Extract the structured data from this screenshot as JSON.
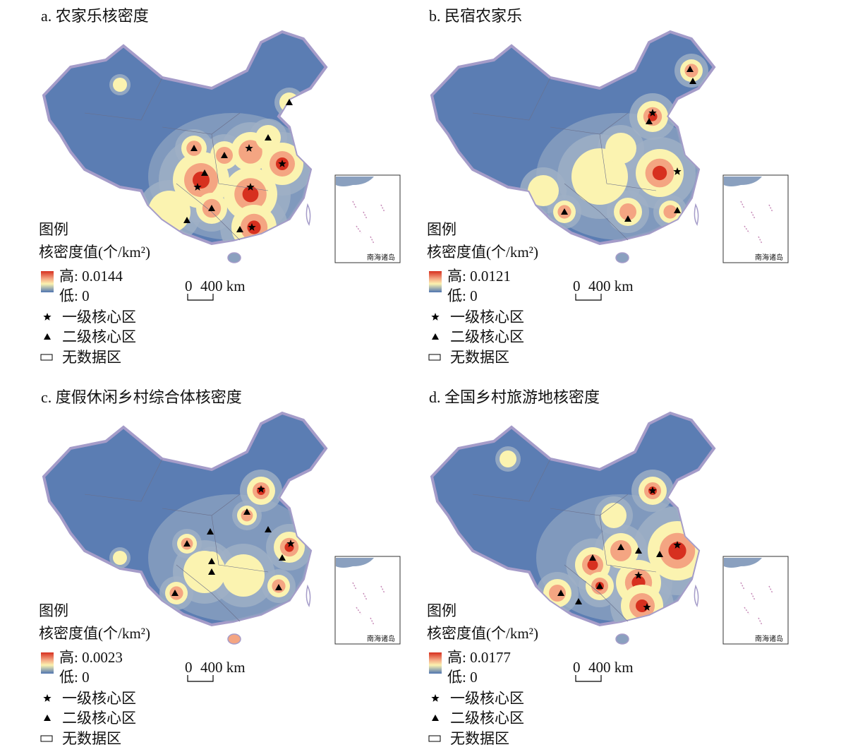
{
  "panels": [
    {
      "title": "a. 农家乐核密度",
      "legend_title": "图例",
      "legend_subtitle": "核密度值(个/km²)",
      "high": "高: 0.0144",
      "low": "低: 0",
      "core1": "一级核心区",
      "core2": "二级核心区",
      "nodata": "无数据区",
      "scale_zero": "0",
      "scale_label": "400 km",
      "inset_label": "南海诸岛"
    },
    {
      "title": "b. 民宿农家乐",
      "legend_title": "图例",
      "legend_subtitle": "核密度值(个/km²)",
      "high": "高: 0.0121",
      "low": "低: 0",
      "core1": "一级核心区",
      "core2": "二级核心区",
      "nodata": "无数据区",
      "scale_zero": "0",
      "scale_label": "400 km",
      "inset_label": "南海诸岛"
    },
    {
      "title": "c. 度假休闲乡村综合体核密度",
      "legend_title": "图例",
      "legend_subtitle": "核密度值(个/km²)",
      "high": "高: 0.0023",
      "low": "低: 0",
      "core1": "一级核心区",
      "core2": "二级核心区",
      "nodata": "无数据区",
      "scale_zero": "0",
      "scale_label": "400 km",
      "inset_label": "南海诸岛"
    },
    {
      "title": "d. 全国乡村旅游地核密度",
      "legend_title": "图例",
      "legend_subtitle": "核密度值(个/km²)",
      "high": "高: 0.0177",
      "low": "低: 0",
      "core1": "一级核心区",
      "core2": "二级核心区",
      "nodata": "无数据区",
      "scale_zero": "0",
      "scale_label": "400 km",
      "inset_label": "南海诸岛"
    }
  ]
}
